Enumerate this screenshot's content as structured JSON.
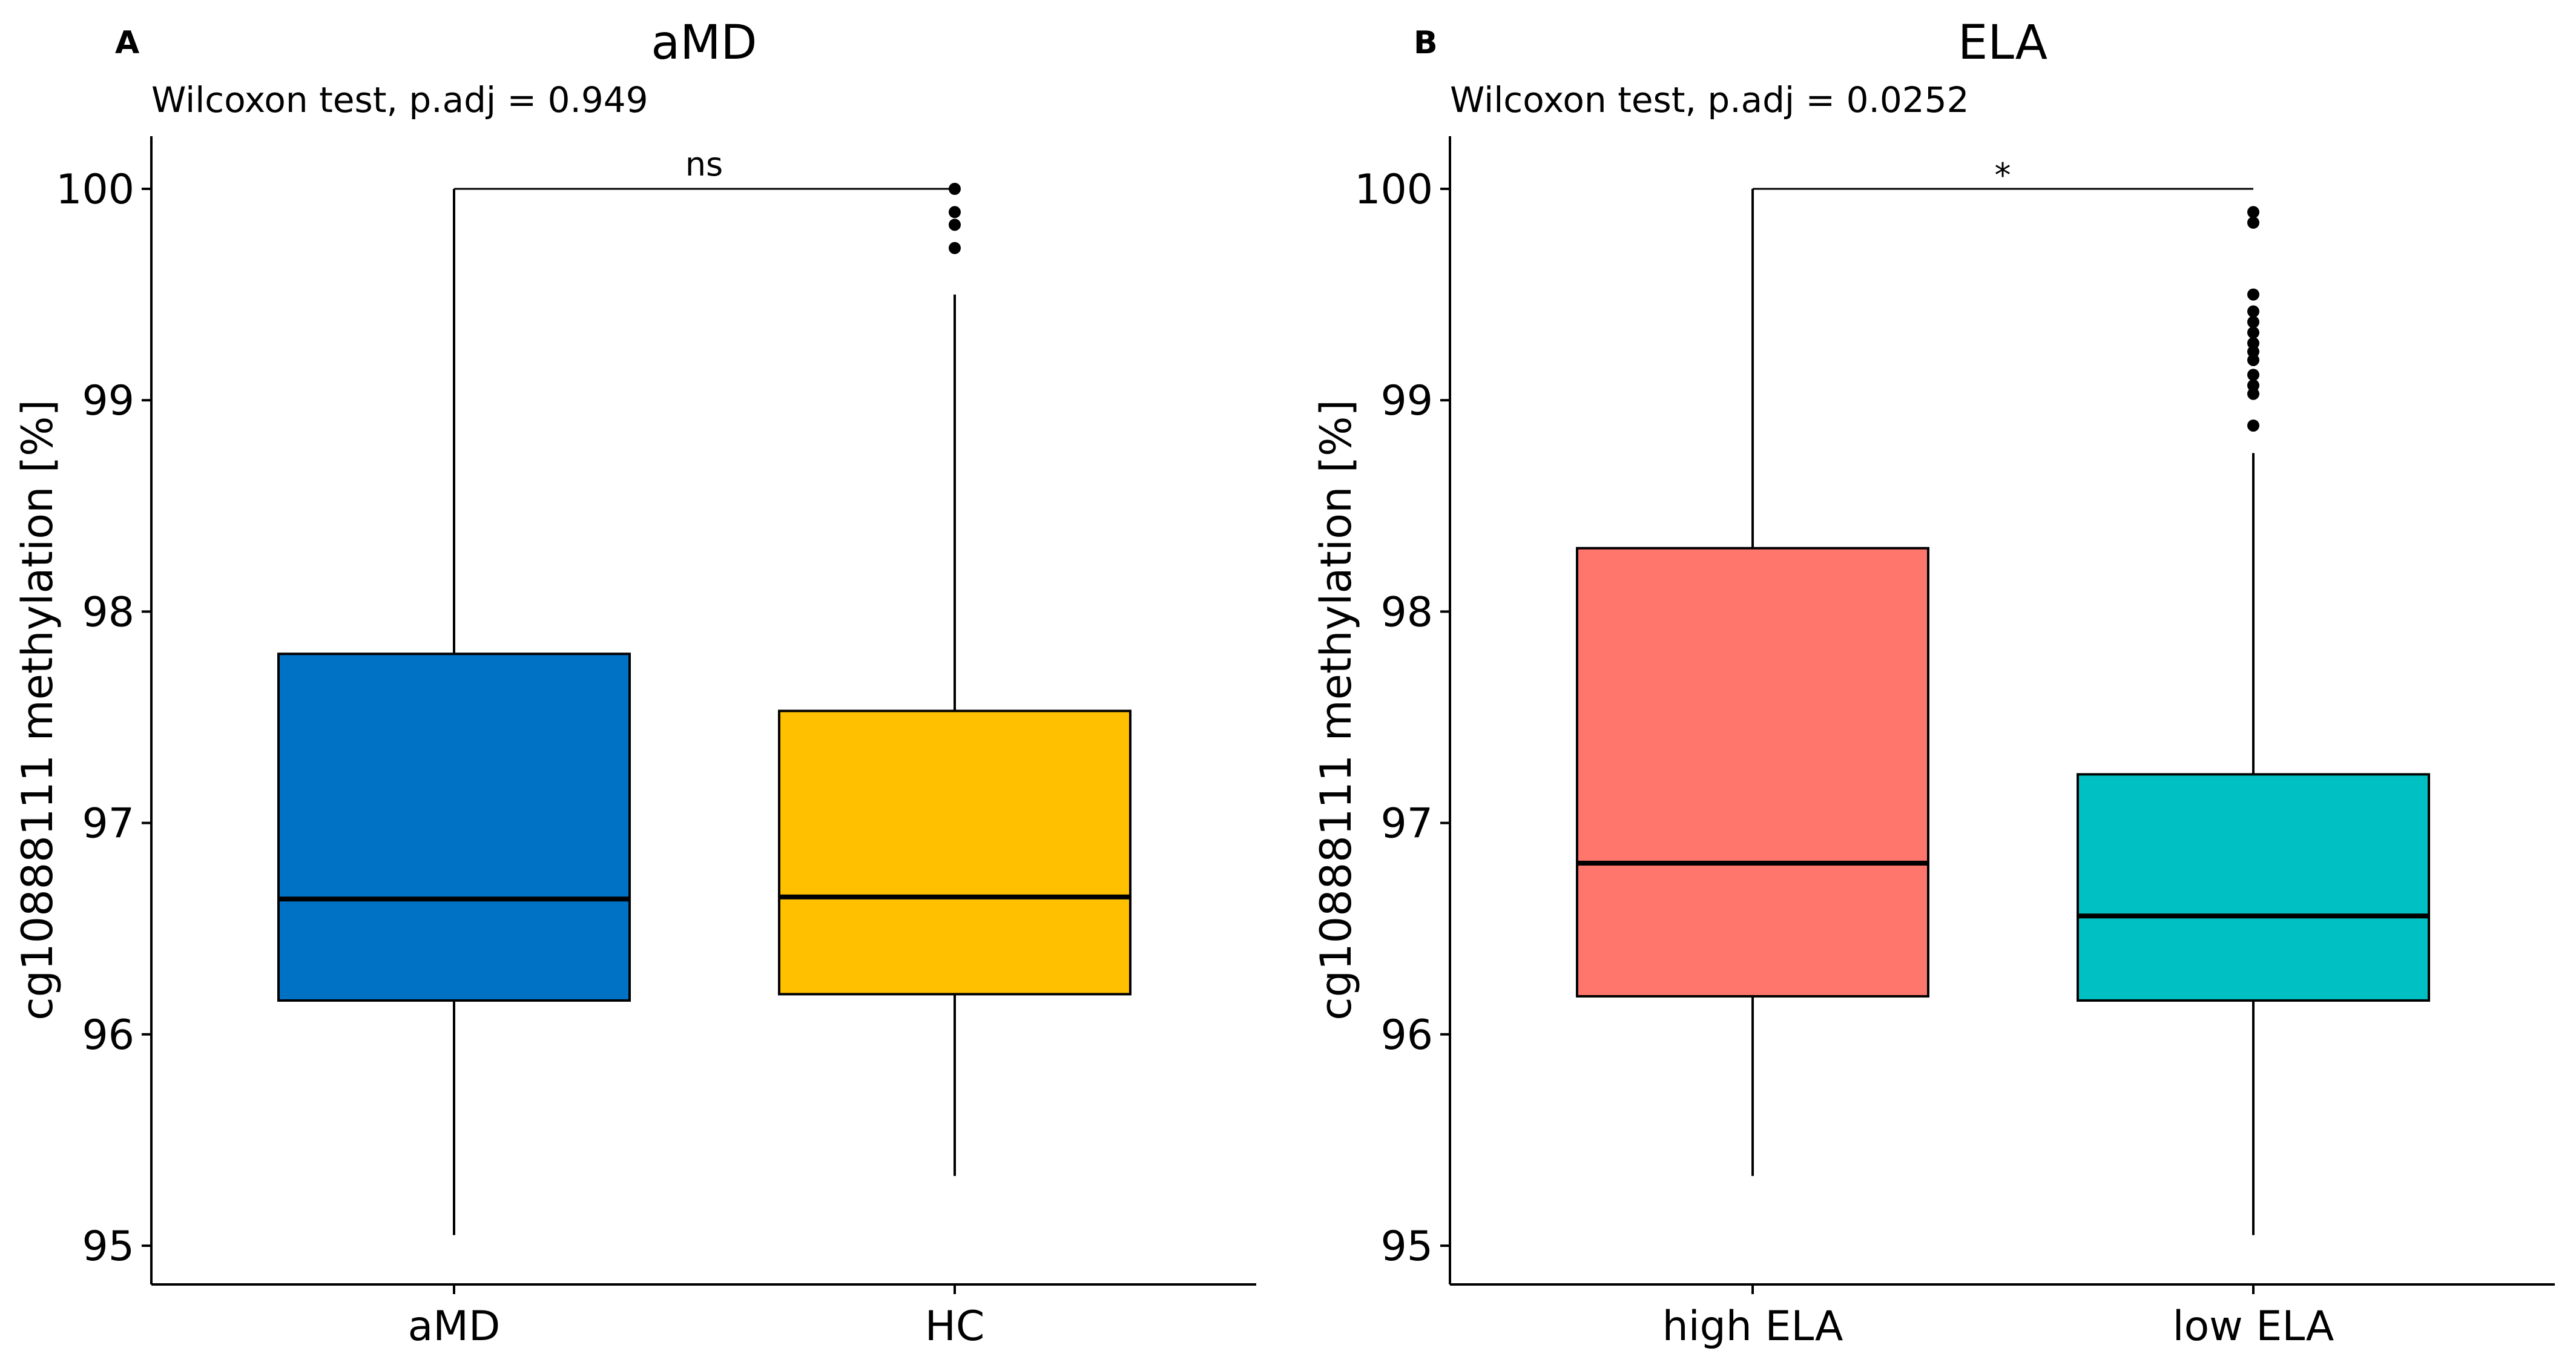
{
  "figure": {
    "panels": [
      {
        "letter": "A",
        "title": "aMD",
        "subtitle": "Wilcoxon test, p.adj = 0.949",
        "ylabel": "cg10888111 methylation [%]",
        "significance": "ns"
      },
      {
        "letter": "B",
        "title": "ELA",
        "subtitle": "Wilcoxon test, p.adj = 0.0252",
        "ylabel": "cg10888111 methylation [%]",
        "significance": "*"
      }
    ]
  },
  "chart_data": [
    {
      "type": "boxplot",
      "title": "aMD",
      "subtitle": "Wilcoxon test, p.adj = 0.949",
      "xlabel": "",
      "ylabel": "cg10888111 methylation [%]",
      "ylim": [
        94.8,
        100.25
      ],
      "yticks": [
        95,
        96,
        97,
        98,
        99,
        100
      ],
      "categories": [
        "aMD",
        "HC"
      ],
      "colors": [
        "#0072C6",
        "#FFC000"
      ],
      "boxes": [
        {
          "category": "aMD",
          "whisker_low": 95.05,
          "q1": 96.16,
          "median": 96.64,
          "q3": 97.8,
          "whisker_high": 100.0,
          "outliers": []
        },
        {
          "category": "HC",
          "whisker_low": 95.33,
          "q1": 96.19,
          "median": 96.65,
          "q3": 97.53,
          "whisker_high": 99.5,
          "outliers": [
            100.0,
            99.89,
            99.83,
            99.72
          ]
        }
      ],
      "comparison": {
        "groups": [
          "aMD",
          "HC"
        ],
        "label": "ns",
        "y": 100.0
      },
      "grid": false
    },
    {
      "type": "boxplot",
      "title": "ELA",
      "subtitle": "Wilcoxon test, p.adj = 0.0252",
      "xlabel": "",
      "ylabel": "cg10888111 methylation [%]",
      "ylim": [
        94.8,
        100.25
      ],
      "yticks": [
        95,
        96,
        97,
        98,
        99,
        100
      ],
      "categories": [
        "high ELA",
        "low ELA"
      ],
      "colors": [
        "#FF766C",
        "#00C0C4"
      ],
      "boxes": [
        {
          "category": "high ELA",
          "whisker_low": 95.33,
          "q1": 96.18,
          "median": 96.81,
          "q3": 98.3,
          "whisker_high": 100.0,
          "outliers": []
        },
        {
          "category": "low ELA",
          "whisker_low": 95.05,
          "q1": 96.16,
          "median": 96.56,
          "q3": 97.23,
          "whisker_high": 98.75,
          "outliers": [
            99.89,
            99.84,
            99.5,
            99.42,
            99.37,
            99.32,
            99.27,
            99.23,
            99.19,
            99.12,
            99.07,
            99.03,
            98.88
          ]
        }
      ],
      "comparison": {
        "groups": [
          "high ELA",
          "low ELA"
        ],
        "label": "*",
        "y": 100.0
      },
      "grid": false
    }
  ]
}
